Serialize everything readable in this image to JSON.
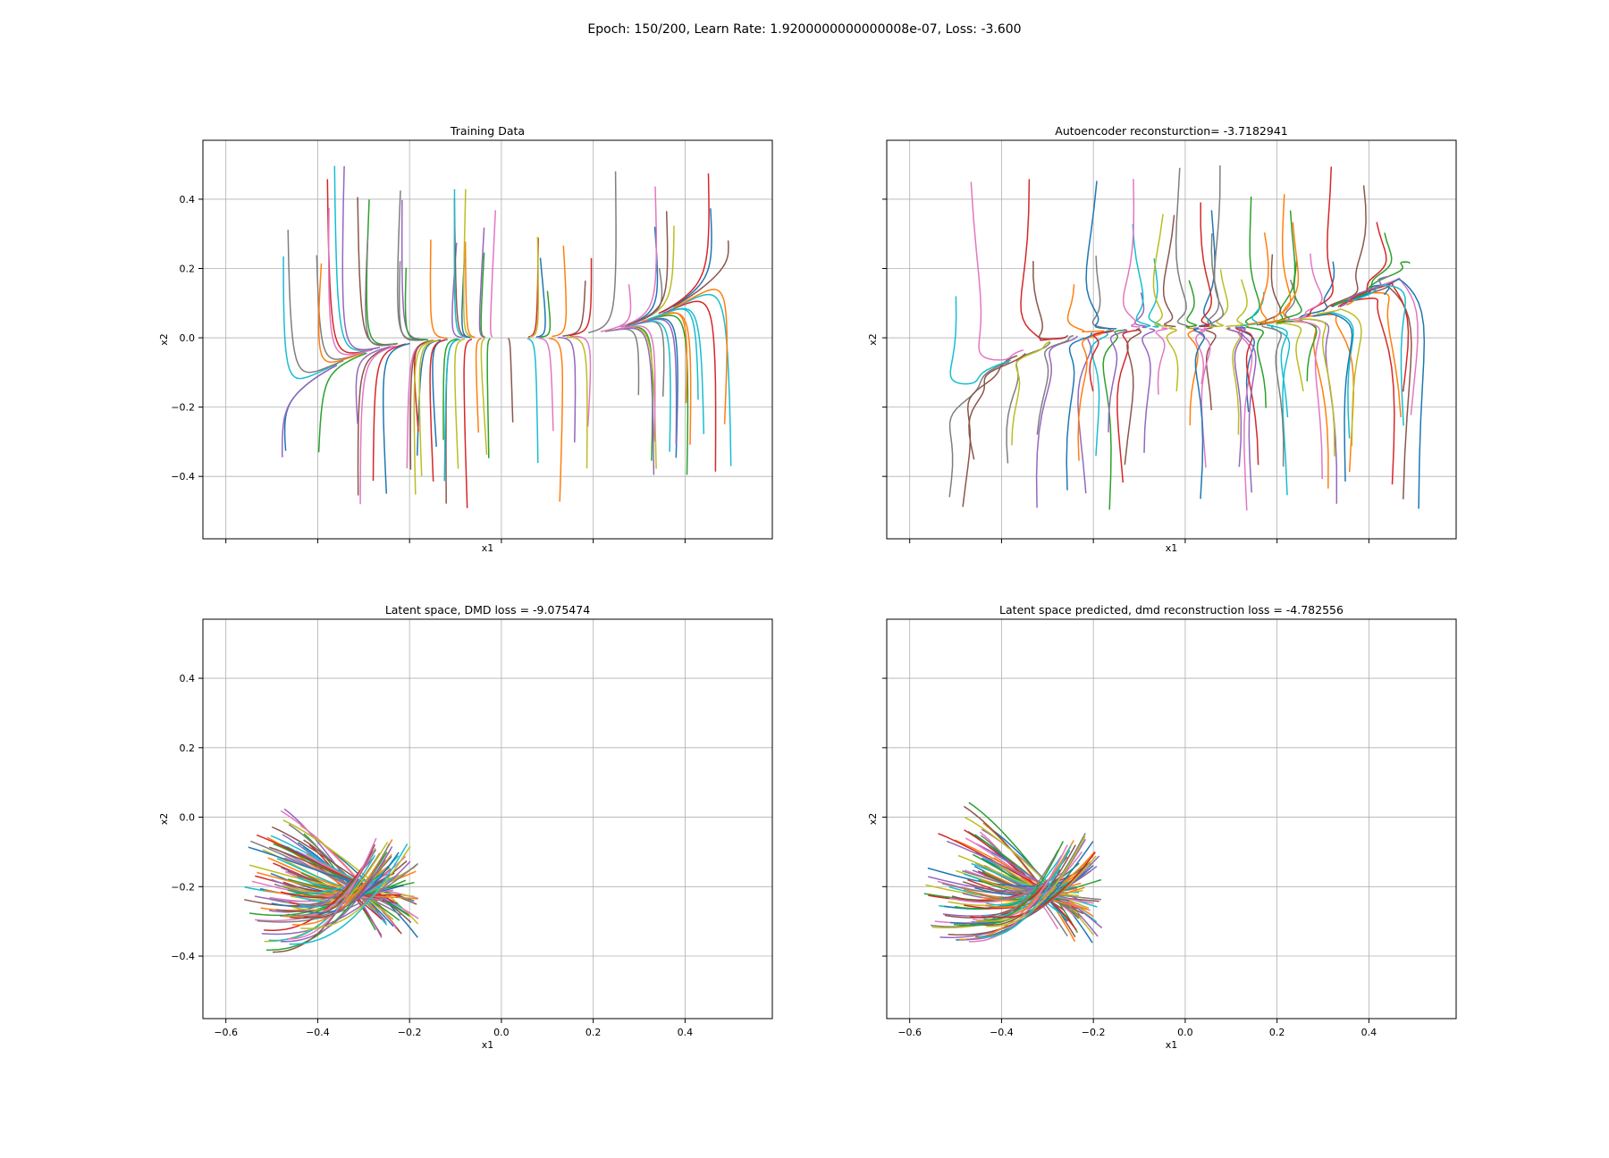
{
  "suptitle": "Epoch: 150/200, Learn Rate: 1.9200000000000008e-07, Loss: -3.600",
  "colors": [
    "#1f77b4",
    "#ff7f0e",
    "#2ca02c",
    "#d62728",
    "#9467bd",
    "#8c564b",
    "#e377c2",
    "#7f7f7f",
    "#bcbd22",
    "#17becf"
  ],
  "chart_data": [
    {
      "type": "line",
      "title": "Training Data",
      "xlabel": "x1",
      "ylabel": "x2",
      "xlim": [
        -0.65,
        0.59
      ],
      "ylim": [
        -0.58,
        0.57
      ],
      "xticks": [
        -0.6,
        -0.4,
        -0.2,
        0.0,
        0.2,
        0.4
      ],
      "yticks": [
        -0.4,
        -0.2,
        0.0,
        0.2,
        0.4
      ],
      "show_xticklabels": false,
      "show_yticklabels": true,
      "grid": true,
      "series_model": {
        "kind": "phase-portrait-trajectories",
        "count": 90,
        "x_range": [
          -0.49,
          0.5
        ],
        "attractor_curve": "x2 = x1^3 * 1.7",
        "start_x2_range": [
          -0.5,
          0.5
        ]
      }
    },
    {
      "type": "line",
      "title": "Autoencoder reconsturction= -3.7182941",
      "xlabel": "x1",
      "ylabel": "x2",
      "xlim": [
        -0.65,
        0.59
      ],
      "ylim": [
        -0.58,
        0.57
      ],
      "xticks": [
        -0.6,
        -0.4,
        -0.2,
        0.0,
        0.2,
        0.4
      ],
      "yticks": [
        -0.4,
        -0.2,
        0.0,
        0.2,
        0.4
      ],
      "show_xticklabels": false,
      "show_yticklabels": false,
      "grid": true,
      "series_model": {
        "kind": "reconstructed-trajectories",
        "count": 90,
        "x_range": [
          -0.52,
          0.53
        ],
        "attractor_curve": "x2 = x1^3 * 1.7 + 0.03",
        "start_x2_range": [
          -0.5,
          0.5
        ]
      }
    },
    {
      "type": "line",
      "title": "Latent space, DMD loss = -9.075474",
      "xlabel": "x1",
      "ylabel": "x2",
      "xlim": [
        -0.65,
        0.59
      ],
      "ylim": [
        -0.58,
        0.57
      ],
      "xticks": [
        -0.6,
        -0.4,
        -0.2,
        0.0,
        0.2,
        0.4
      ],
      "yticks": [
        -0.4,
        -0.2,
        0.0,
        0.2,
        0.4
      ],
      "xticklabels": [
        "−0.6",
        "−0.4",
        "−0.2",
        "0.0",
        "0.2",
        "0.4"
      ],
      "yticklabels": [
        "−0.4",
        "−0.2",
        "0.0",
        "0.2",
        "0.4"
      ],
      "show_xticklabels": true,
      "show_yticklabels": true,
      "grid": true,
      "series_model": {
        "kind": "latent-fan",
        "count": 90,
        "center": [
          -0.34,
          -0.2
        ],
        "tail_x_range": [
          -0.6,
          -0.17
        ],
        "y_range": [
          -0.53,
          0.05
        ]
      }
    },
    {
      "type": "line",
      "title": "Latent space predicted, dmd reconstruction loss = -4.782556",
      "xlabel": "x1",
      "ylabel": "x2",
      "xlim": [
        -0.65,
        0.59
      ],
      "ylim": [
        -0.58,
        0.57
      ],
      "xticks": [
        -0.6,
        -0.4,
        -0.2,
        0.0,
        0.2,
        0.4
      ],
      "yticks": [
        -0.4,
        -0.2,
        0.0,
        0.2,
        0.4
      ],
      "xticklabels": [
        "−0.6",
        "−0.4",
        "−0.2",
        "0.0",
        "0.2",
        "0.4"
      ],
      "show_xticklabels": true,
      "show_yticklabels": false,
      "grid": true,
      "series_model": {
        "kind": "latent-fan",
        "count": 90,
        "center": [
          -0.34,
          -0.2
        ],
        "tail_x_range": [
          -0.58,
          -0.2
        ],
        "y_range": [
          -0.48,
          0.04
        ]
      }
    }
  ]
}
